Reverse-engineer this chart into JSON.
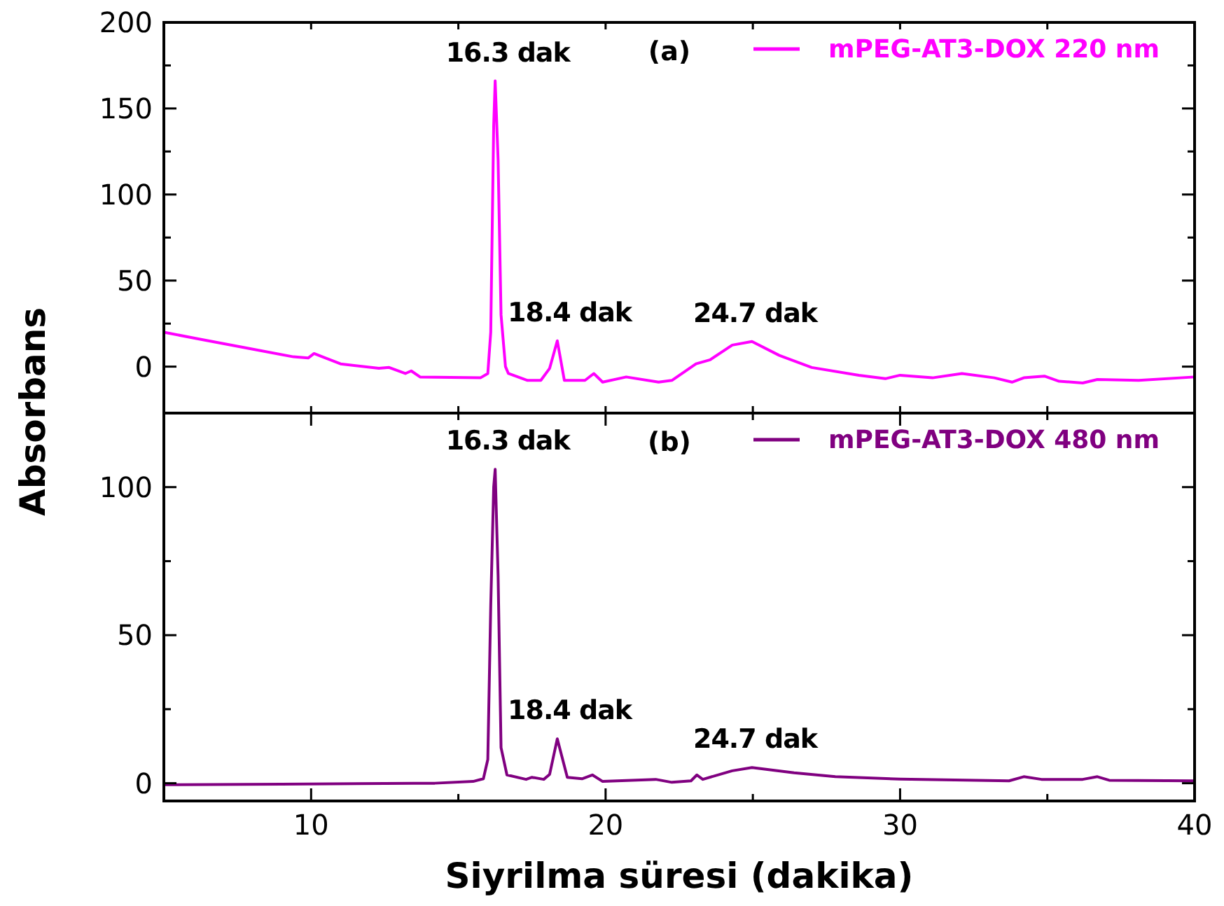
{
  "chart_data": [
    {
      "type": "line",
      "ylabel": "Absorbans",
      "annotations": [
        "(a)",
        {
          "text": "16.3 dak",
          "x": 16.3,
          "y": 166
        },
        {
          "text": "18.4 dak",
          "x": 18.4,
          "y": 15
        },
        {
          "text": "24.7 dak",
          "x": 24.7,
          "y": 14.6
        }
      ],
      "xlim": [
        5,
        40
      ],
      "ylim": [
        -27,
        200
      ],
      "xticks": [
        {
          "value": 5,
          "label": null
        },
        {
          "value": 10,
          "label": null
        },
        {
          "value": 15,
          "label": null
        },
        {
          "value": 20,
          "label": null
        },
        {
          "value": 25,
          "label": null
        },
        {
          "value": 30,
          "label": null
        },
        {
          "value": 35,
          "label": null
        },
        {
          "value": 40,
          "label": null
        }
      ],
      "yticks": [
        0,
        {
          "value": 25,
          "label": null
        },
        50,
        {
          "value": 75,
          "label": null
        },
        100,
        {
          "value": 125,
          "label": null
        },
        150,
        {
          "value": 175,
          "label": null
        },
        200
      ],
      "tick_labels": "y",
      "legend": "top right",
      "grid": false,
      "marker": "none",
      "line_style": "solid",
      "series": [
        {
          "name": "mPEG-AT3-DOX 220 nm",
          "color": "#ff00ff",
          "x": [
            5,
            6.2,
            7.9,
            9.4,
            9.9,
            10.1,
            11.0,
            12.3,
            12.65,
            13.2,
            13.4,
            13.7,
            15.75,
            16.0,
            16.1,
            16.2,
            16.25,
            16.35,
            16.45,
            16.6,
            16.7,
            17.35,
            17.8,
            18.1,
            18.36,
            18.6,
            19.3,
            19.6,
            19.9,
            20.7,
            21.8,
            22.25,
            23.07,
            23.55,
            24.3,
            24.97,
            25.9,
            27.0,
            28.6,
            29.5,
            30.0,
            31.1,
            32.1,
            33.2,
            33.8,
            34.2,
            34.9,
            35.4,
            36.2,
            36.7,
            38.1,
            40
          ],
          "values": [
            20,
            16,
            10.5,
            5.7,
            5,
            7.6,
            1.6,
            -1,
            -0.5,
            -4,
            -2.5,
            -6,
            -6.5,
            -4,
            20,
            140,
            166,
            120,
            30,
            0,
            -4,
            -8,
            -8,
            -1,
            15,
            -8,
            -8,
            -4,
            -9,
            -6,
            -9,
            -8,
            1.6,
            4,
            12.5,
            14.6,
            6.5,
            -0.5,
            -5,
            -7,
            -5,
            -6.5,
            -4,
            -6.5,
            -9,
            -6.5,
            -5.5,
            -8.5,
            -9.5,
            -7.5,
            -8,
            -6
          ]
        }
      ]
    },
    {
      "type": "line",
      "xlabel": "Siyrilma süresi (dakika)",
      "annotations": [
        "(b)",
        {
          "text": "16.3 dak",
          "x": 16.3,
          "y": 106
        },
        {
          "text": "18.4 dak",
          "x": 18.4,
          "y": 15
        },
        {
          "text": "24.7 dak",
          "x": 24.7,
          "y": 5.3
        }
      ],
      "xlim": [
        5,
        40
      ],
      "ylim": [
        -6,
        125
      ],
      "xticks": [
        {
          "value": 5,
          "label": null
        },
        10,
        {
          "value": 15,
          "label": null
        },
        20,
        {
          "value": 25,
          "label": null
        },
        30,
        {
          "value": 35,
          "label": null
        },
        40
      ],
      "yticks": [
        0,
        {
          "value": 25,
          "label": null
        },
        50,
        {
          "value": 75,
          "label": null
        },
        100
      ],
      "legend": "top right",
      "grid": false,
      "marker": "none",
      "line_style": "solid",
      "series": [
        {
          "name": "mPEG-AT3-DOX 480 nm",
          "color": "#800080",
          "x": [
            5,
            9,
            13.5,
            14.2,
            15.5,
            15.85,
            16.0,
            16.1,
            16.2,
            16.25,
            16.35,
            16.45,
            16.65,
            17.3,
            17.5,
            17.9,
            18.1,
            18.36,
            18.7,
            19.2,
            19.55,
            19.9,
            21.7,
            22.25,
            22.9,
            23.1,
            23.3,
            24.3,
            24.97,
            26.4,
            27.8,
            30.0,
            33.7,
            34.2,
            34.8,
            36.2,
            36.7,
            37.1,
            40
          ],
          "values": [
            -0.5,
            -0.3,
            0,
            0,
            0.6,
            1.5,
            8,
            60,
            100,
            106,
            70,
            12,
            2.8,
            1.3,
            2,
            1.3,
            3,
            15,
            2,
            1.5,
            2.8,
            0.6,
            1.3,
            0.3,
            0.8,
            2.8,
            1.3,
            4.2,
            5.3,
            3.5,
            2.2,
            1.4,
            0.8,
            2.2,
            1.3,
            1.3,
            2.2,
            1,
            0.8
          ]
        }
      ]
    }
  ]
}
